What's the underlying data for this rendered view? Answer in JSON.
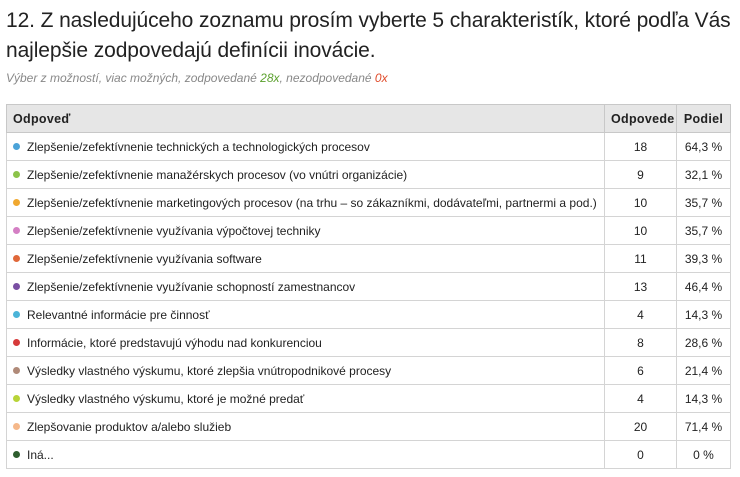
{
  "question": {
    "title": "12. Z nasledujúceho zoznamu prosím vyberte 5 charakteristík, ktoré podľa Vás najlepšie zodpovedajú definícii inovácie.",
    "meta_prefix": "Výber z možností, viac možných, zodpovedané ",
    "answered_count": "28x",
    "meta_middle": ", nezodpovedané ",
    "unanswered_count": "0x"
  },
  "table": {
    "headers": {
      "answer": "Odpoveď",
      "count": "Odpovede",
      "share": "Podiel"
    },
    "rows": [
      {
        "label": "Zlepšenie/zefektívnenie technických a technologických procesov",
        "count": "18",
        "share": "64,3 %",
        "color": "#4ba3d8"
      },
      {
        "label": "Zlepšenie/zefektívnenie manažérskych procesov (vo vnútri organizácie)",
        "count": "9",
        "share": "32,1 %",
        "color": "#8cc34a"
      },
      {
        "label": "Zlepšenie/zefektívnenie marketingových procesov (na trhu – so zákazníkmi, dodávateľmi, partnermi a pod.)",
        "count": "10",
        "share": "35,7 %",
        "color": "#f0a830"
      },
      {
        "label": "Zlepšenie/zefektívnenie využívania výpočtovej techniky",
        "count": "10",
        "share": "35,7 %",
        "color": "#d47fc4"
      },
      {
        "label": "Zlepšenie/zefektívnenie využívania software",
        "count": "11",
        "share": "39,3 %",
        "color": "#e0683a"
      },
      {
        "label": "Zlepšenie/zefektívnenie využívanie schopností zamestnancov",
        "count": "13",
        "share": "46,4 %",
        "color": "#7a4fa3"
      },
      {
        "label": "Relevantné informácie pre činnosť",
        "count": "4",
        "share": "14,3 %",
        "color": "#4bb4d8"
      },
      {
        "label": "Informácie, ktoré predstavujú výhodu nad konkurenciou",
        "count": "8",
        "share": "28,6 %",
        "color": "#d63a3a"
      },
      {
        "label": "Výsledky vlastného výskumu, ktoré zlepšia vnútropodnikové procesy",
        "count": "6",
        "share": "21,4 %",
        "color": "#b08a78"
      },
      {
        "label": "Výsledky vlastného výskumu, ktoré je možné predať",
        "count": "4",
        "share": "14,3 %",
        "color": "#b8d438"
      },
      {
        "label": "Zlepšovanie produktov a/alebo služieb",
        "count": "20",
        "share": "71,4 %",
        "color": "#f5b88a"
      },
      {
        "label": "Iná...",
        "count": "0",
        "share": "0 %",
        "color": "#2e5e2e"
      }
    ]
  }
}
